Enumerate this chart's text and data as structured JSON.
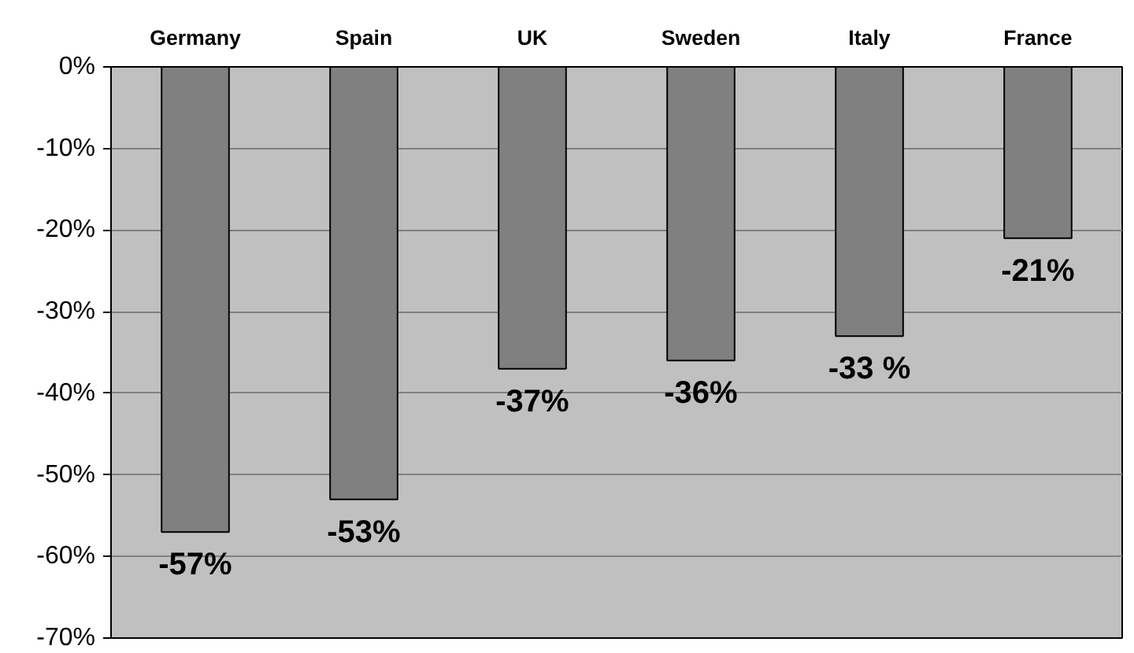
{
  "chart_data": {
    "type": "bar",
    "categories": [
      "Germany",
      "Spain",
      "UK",
      "Sweden",
      "Italy",
      "France"
    ],
    "values": [
      -57,
      -53,
      -37,
      -36,
      -33,
      -21
    ],
    "value_labels": [
      "-57%",
      "-53%",
      "-37%",
      "-36%",
      "-33 %",
      "-21%"
    ],
    "color": "#808080",
    "ylim": [
      -70,
      0
    ],
    "yticks": [
      {
        "value": 0,
        "label": "0%"
      },
      {
        "value": -10,
        "label": "-10%"
      },
      {
        "value": -20,
        "label": "-20%"
      },
      {
        "value": -30,
        "label": "-30%"
      },
      {
        "value": -40,
        "label": "-40%"
      },
      {
        "value": -50,
        "label": "-50%"
      },
      {
        "value": -60,
        "label": "-60%"
      },
      {
        "value": -70,
        "label": "-70%"
      }
    ],
    "grid": "y"
  }
}
